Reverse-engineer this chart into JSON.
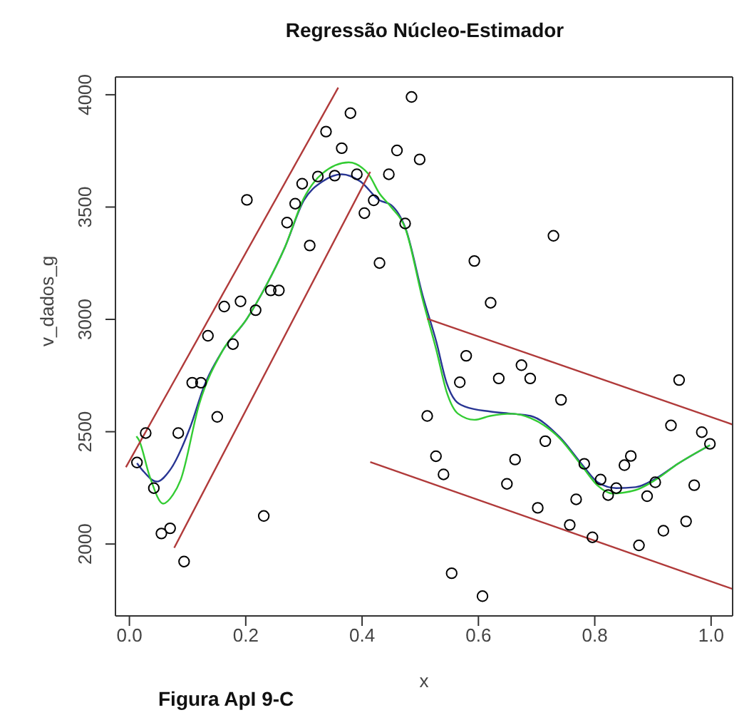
{
  "chart_data": {
    "type": "scatter",
    "title": "Regressão Núcleo-Estimador",
    "xlabel": "x",
    "ylabel": "v_dados_g",
    "annotations": [
      "Figura ApI 9-C"
    ],
    "xlim": [
      -0.024,
      1.037
    ],
    "ylim": [
      1680,
      4079
    ],
    "xticks": [
      {
        "value": 0,
        "label": "0.0"
      },
      {
        "value": 0.2,
        "label": "0.2"
      },
      {
        "value": 0.4,
        "label": "0.4"
      },
      {
        "value": 0.6,
        "label": "0.6"
      },
      {
        "value": 0.8,
        "label": "0.8"
      },
      {
        "value": 1,
        "label": "1.0"
      }
    ],
    "yticks": [
      2000,
      2500,
      3000,
      3500,
      4000
    ],
    "series": [
      {
        "marker": "circle",
        "color": "#000000",
        "x": [
          0.013,
          0.028,
          0.042,
          0.055,
          0.07,
          0.084,
          0.094,
          0.108,
          0.123,
          0.135,
          0.151,
          0.163,
          0.178,
          0.191,
          0.202,
          0.217,
          0.231,
          0.243,
          0.257,
          0.271,
          0.285,
          0.297,
          0.31,
          0.324,
          0.338,
          0.353,
          0.365,
          0.38,
          0.391,
          0.404,
          0.42,
          0.43,
          0.446,
          0.46,
          0.474,
          0.485,
          0.499,
          0.512,
          0.527,
          0.54,
          0.554,
          0.568,
          0.579,
          0.593,
          0.607,
          0.621,
          0.635,
          0.649,
          0.663,
          0.674,
          0.689,
          0.702,
          0.715,
          0.729,
          0.742,
          0.757,
          0.768,
          0.782,
          0.796,
          0.81,
          0.823,
          0.837,
          0.851,
          0.862,
          0.876,
          0.89,
          0.904,
          0.918,
          0.931,
          0.945,
          0.957,
          0.971,
          0.984,
          0.998
        ],
        "values": [
          2363,
          2494,
          2249,
          2047,
          2070,
          2494,
          1922,
          2718,
          2718,
          2927,
          2566,
          3057,
          2890,
          3080,
          3532,
          3041,
          2125,
          3129,
          3129,
          3431,
          3515,
          3604,
          3329,
          3636,
          3836,
          3640,
          3762,
          3918,
          3646,
          3473,
          3530,
          3251,
          3646,
          3752,
          3427,
          3990,
          3712,
          2570,
          2391,
          2310,
          1870,
          2720,
          2838,
          3260,
          1768,
          3074,
          2737,
          2268,
          2376,
          2796,
          2737,
          2161,
          2458,
          3372,
          2642,
          2085,
          2199,
          2357,
          2030,
          2287,
          2218,
          2249,
          2351,
          2392,
          1994,
          2213,
          2275,
          2059,
          2528,
          2730,
          2101,
          2262,
          2498,
          2446
        ]
      },
      {
        "type": "line",
        "color": "#283593",
        "x": [
          0.013,
          0.023,
          0.047,
          0.07,
          0.104,
          0.129,
          0.16,
          0.202,
          0.235,
          0.267,
          0.3,
          0.332,
          0.365,
          0.397,
          0.43,
          0.45,
          0.475,
          0.504,
          0.528,
          0.545,
          0.56,
          0.577,
          0.62,
          0.658,
          0.69,
          0.74,
          0.78,
          0.805,
          0.837,
          0.87,
          0.904,
          0.944,
          0.998
        ],
        "values": [
          2360,
          2327,
          2278,
          2330,
          2517,
          2707,
          2860,
          3003,
          3150,
          3319,
          3530,
          3614,
          3646,
          3614,
          3530,
          3509,
          3403,
          3108,
          2897,
          2720,
          2640,
          2612,
          2590,
          2580,
          2570,
          2475,
          2348,
          2275,
          2249,
          2253,
          2290,
          2359,
          2440
        ]
      },
      {
        "type": "line",
        "color": "#33cc33",
        "x": [
          0.012,
          0.016,
          0.035,
          0.058,
          0.075,
          0.088,
          0.12,
          0.16,
          0.202,
          0.235,
          0.267,
          0.3,
          0.332,
          0.377,
          0.41,
          0.43,
          0.45,
          0.475,
          0.504,
          0.528,
          0.545,
          0.565,
          0.593,
          0.62,
          0.658,
          0.69,
          0.74,
          0.78,
          0.805,
          0.83,
          0.87,
          0.904,
          0.944,
          0.998
        ],
        "values": [
          2480,
          2465,
          2300,
          2180,
          2220,
          2285,
          2623,
          2860,
          3003,
          3150,
          3319,
          3540,
          3650,
          3699,
          3650,
          3560,
          3500,
          3400,
          3090,
          2860,
          2680,
          2580,
          2553,
          2570,
          2580,
          2560,
          2470,
          2340,
          2260,
          2225,
          2240,
          2285,
          2359,
          2440
        ]
      },
      {
        "type": "line",
        "color": "#b03a3a",
        "x": [
          -0.006,
          0.359
        ],
        "values": [
          2342,
          4032
        ]
      },
      {
        "type": "line",
        "color": "#b03a3a",
        "x": [
          0.077,
          0.414
        ],
        "values": [
          1983,
          3657
        ]
      },
      {
        "type": "line",
        "color": "#b03a3a",
        "x": [
          0.512,
          1.037
        ],
        "values": [
          3003,
          2532
        ]
      },
      {
        "type": "line",
        "color": "#b03a3a",
        "x": [
          0.414,
          1.037
        ],
        "values": [
          2365,
          1800
        ]
      }
    ]
  }
}
